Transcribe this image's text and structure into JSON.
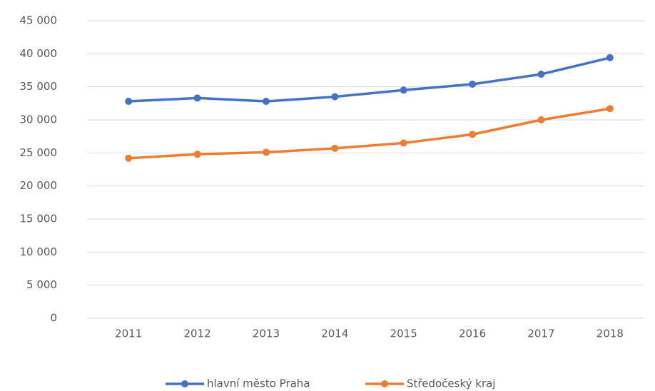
{
  "chart_data": {
    "type": "line",
    "categories": [
      "2011",
      "2012",
      "2013",
      "2014",
      "2015",
      "2016",
      "2017",
      "2018"
    ],
    "series": [
      {
        "name": "hlavní město Praha",
        "color": "#4472c4",
        "values": [
          32800,
          33300,
          32800,
          33500,
          34500,
          35400,
          36900,
          39400
        ]
      },
      {
        "name": "Středočeský kraj",
        "color": "#ed7d31",
        "values": [
          24200,
          24800,
          25100,
          25700,
          26500,
          27800,
          30000,
          31700
        ]
      }
    ],
    "ylim": [
      0,
      45000
    ],
    "yticks": [
      0,
      {
        "value": 5000,
        "label": "5 000"
      },
      {
        "value": 10000,
        "label": "10 000"
      },
      {
        "value": 15000,
        "label": "15 000"
      },
      {
        "value": 20000,
        "label": "20 000"
      },
      {
        "value": 25000,
        "label": "25 000"
      },
      {
        "value": 30000,
        "label": "30 000"
      },
      {
        "value": 35000,
        "label": "35 000"
      },
      {
        "value": 40000,
        "label": "40 000"
      },
      {
        "value": 45000,
        "label": "45 000"
      }
    ],
    "grid": true,
    "legend": "bottom"
  }
}
